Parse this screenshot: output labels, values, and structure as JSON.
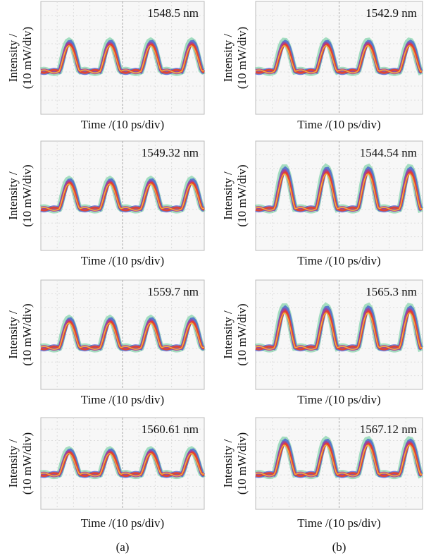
{
  "columns": [
    {
      "label": "(a)",
      "panels": [
        {
          "wavelength": "1548.5 nm",
          "x_label": "Time /(10 ps/div)",
          "y_label": [
            "Intensity /",
            "(10 mW/div)"
          ]
        },
        {
          "wavelength": "1549.32 nm",
          "x_label": "Time /(10 ps/div)",
          "y_label": [
            "Intensity /",
            "(10 mW/div)"
          ]
        },
        {
          "wavelength": "1559.7 nm",
          "x_label": "Time /(10 ps/div)",
          "y_label": [
            "Intensity /",
            "(10 mW/div)"
          ]
        },
        {
          "wavelength": "1560.61 nm",
          "x_label": "Time /(10 ps/div)",
          "y_label": [
            "Intensity /",
            "(10 mW/div)"
          ]
        }
      ]
    },
    {
      "label": "(b)",
      "panels": [
        {
          "wavelength": "1542.9 nm",
          "x_label": "Time /(10 ps/div)",
          "y_label": [
            "Intensity /",
            "(10 mW/div)"
          ]
        },
        {
          "wavelength": "1544.54 nm",
          "x_label": "Time /(10 ps/div)",
          "y_label": [
            "Intensity /",
            "(10 mW/div)"
          ]
        },
        {
          "wavelength": "1565.3 nm",
          "x_label": "Time /(10 ps/div)",
          "y_label": [
            "Intensity /",
            "(10 mW/div)"
          ]
        },
        {
          "wavelength": "1567.12 nm",
          "x_label": "Time /(10 ps/div)",
          "y_label": [
            "Intensity /",
            "(10 mW/div)"
          ]
        }
      ]
    }
  ]
}
